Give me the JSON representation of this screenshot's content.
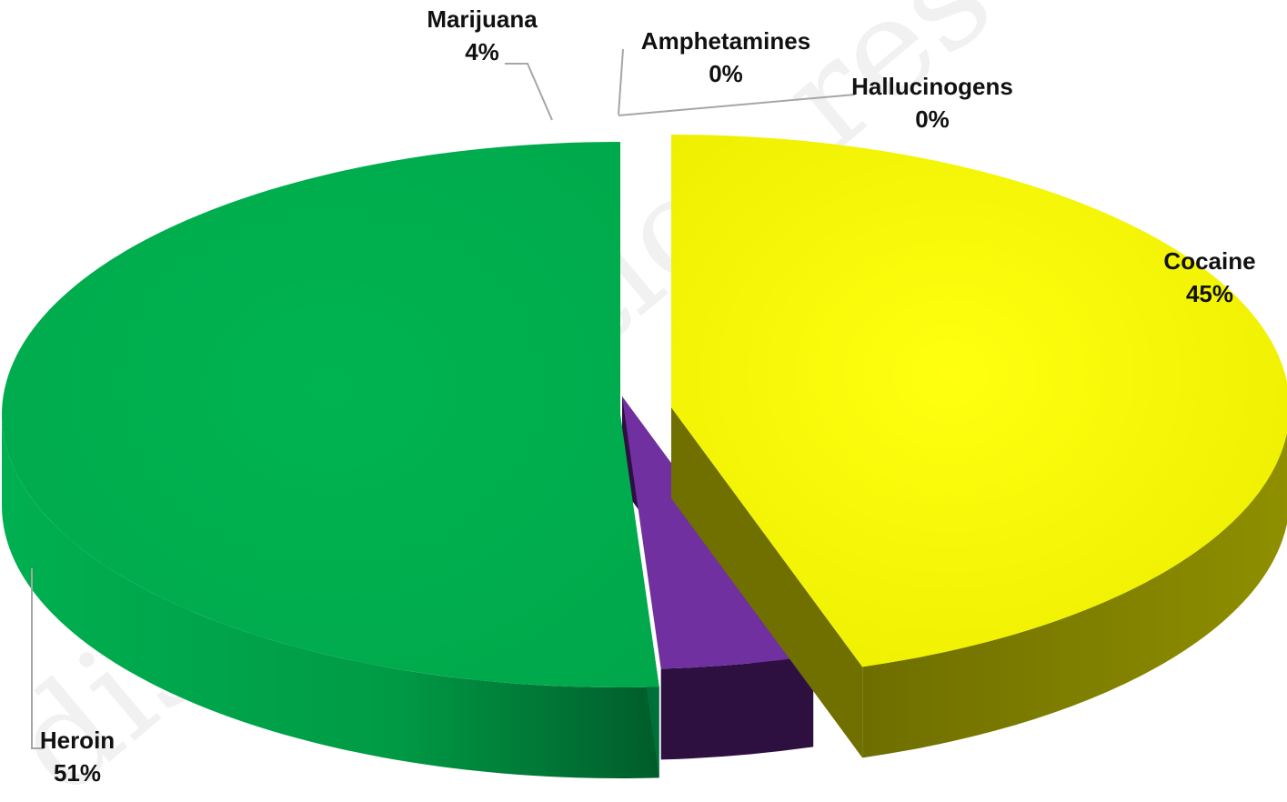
{
  "chart_data": {
    "type": "pie",
    "style": "3d-exploded",
    "slices": [
      {
        "name": "Cocaine",
        "value": 45,
        "label": "45%",
        "color": "#F5F500",
        "side_color": "#7A7A00"
      },
      {
        "name": "Hallucinogens",
        "value": 0,
        "label": "0%",
        "color": "#D9D9D9",
        "side_color": "#8C8C8C"
      },
      {
        "name": "Amphetamines",
        "value": 0,
        "label": "0%",
        "color": "#D9D9D9",
        "side_color": "#8C8C8C"
      },
      {
        "name": "Marijuana",
        "value": 4,
        "label": "4%",
        "color": "#7030A0",
        "side_color": "#2E1040"
      },
      {
        "name": "Heroin",
        "value": 51,
        "label": "51%",
        "color": "#00B050",
        "side_color": "#008A3C"
      }
    ],
    "legend": "none",
    "data_labels": "outside-with-leader-lines"
  }
}
